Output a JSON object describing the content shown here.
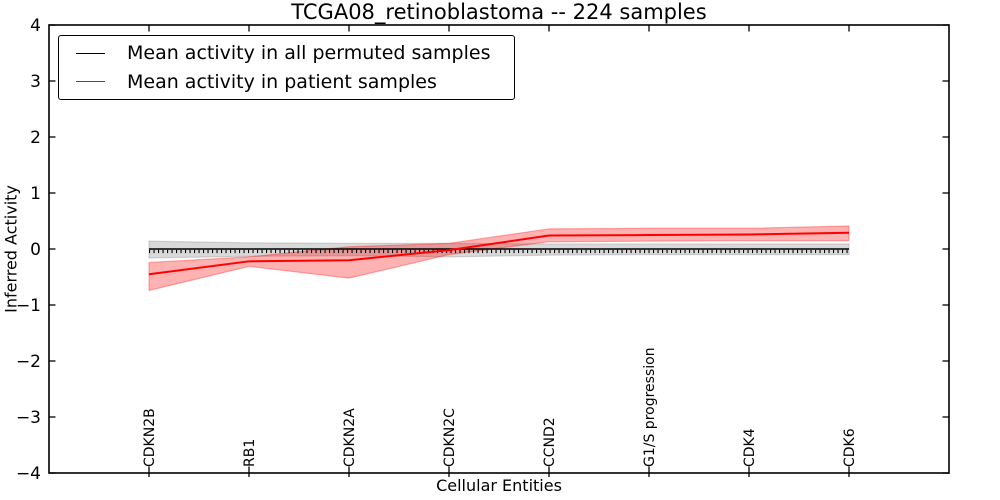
{
  "title": "TCGA08_retinoblastoma -- 224 samples",
  "legend": {
    "position": "upper left",
    "entries": [
      {
        "label": "Mean activity in all permuted samples",
        "color": "#000000"
      },
      {
        "label": "Mean activity in patient samples",
        "color": "#ff0000"
      }
    ]
  },
  "colors": {
    "axis": "#000000",
    "permuted_line": "#000000",
    "permuted_band": "rgba(128,128,128,0.30)",
    "patient_line": "#ff0000",
    "patient_band": "rgba(255,0,0,0.30)"
  },
  "chart_data": {
    "type": "line",
    "title": "TCGA08_retinoblastoma -- 224 samples",
    "xlabel": "Cellular Entities",
    "ylabel": "Inferred Activity",
    "ylim": [
      -4,
      4
    ],
    "yticks": [
      4,
      3,
      2,
      1,
      0,
      -1,
      -2,
      -3,
      -4
    ],
    "grid": false,
    "legend_position": "upper left",
    "categories": [
      "CDKN2B",
      "RB1",
      "CDKN2A",
      "CDKN2C",
      "CCND2",
      "G1/S progression",
      "CDK4",
      "CDK6"
    ],
    "series": [
      {
        "name": "Mean activity in all permuted samples",
        "color": "#000000",
        "marker": "dense small vertical tick marks along line",
        "values": [
          0.0,
          0.0,
          0.0,
          0.0,
          0.0,
          0.0,
          0.0,
          0.0
        ],
        "band": {
          "upper": [
            0.14,
            0.11,
            0.1,
            0.1,
            0.09,
            0.09,
            0.09,
            0.09
          ],
          "lower": [
            -0.16,
            -0.13,
            -0.12,
            -0.14,
            -0.11,
            -0.1,
            -0.1,
            -0.1
          ],
          "fill": "rgba(128,128,128,0.30)"
        }
      },
      {
        "name": "Mean activity in patient samples",
        "color": "#ff0000",
        "marker": "none",
        "values": [
          -0.45,
          -0.22,
          -0.2,
          -0.02,
          0.24,
          0.25,
          0.26,
          0.29
        ],
        "band": {
          "upper": [
            -0.24,
            -0.14,
            0.04,
            0.1,
            0.36,
            0.37,
            0.37,
            0.41
          ],
          "lower": [
            -0.74,
            -0.31,
            -0.52,
            -0.1,
            0.13,
            0.14,
            0.15,
            0.15
          ],
          "fill": "rgba(255,0,0,0.30)"
        }
      }
    ]
  }
}
